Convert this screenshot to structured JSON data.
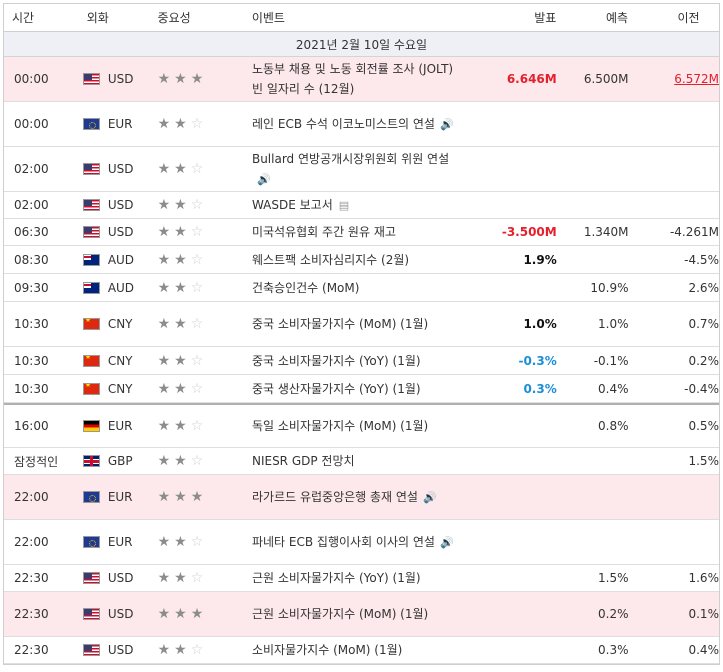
{
  "header": {
    "time": "시간",
    "currency": "외화",
    "importance": "중요성",
    "event": "이벤트",
    "actual": "발표",
    "forecast": "예측",
    "previous": "이전"
  },
  "date_label": "2021년 2월 10일 수요일",
  "rows": [
    {
      "time": "00:00",
      "currency": "USD",
      "flag": "usd-flag-icon",
      "stars": 3,
      "event": "노동부 채용 및 노동 회전률 조사 (JOLT) 빈 일자리 수 (12월)",
      "actual": "6.646M",
      "forecast": "6.500M",
      "previous": "6.572M",
      "highlight": true
    },
    {
      "time": "00:00",
      "currency": "EUR",
      "flag": "eu-flag-icon",
      "stars": 2,
      "event": "레인 ECB 수석 이코노미스트의 연설",
      "speaker": true,
      "actual": "",
      "forecast": "",
      "previous": ""
    },
    {
      "time": "02:00",
      "currency": "USD",
      "flag": "usd-flag-icon",
      "stars": 2,
      "event": "Bullard 연방공개시장위원회 위원 연설",
      "speaker": true,
      "actual": "",
      "forecast": "",
      "previous": ""
    },
    {
      "time": "02:00",
      "currency": "USD",
      "flag": "usd-flag-icon",
      "stars": 2,
      "event": "WASDE 보고서",
      "document": true,
      "actual": "",
      "forecast": "",
      "previous": ""
    },
    {
      "time": "06:30",
      "currency": "USD",
      "flag": "usd-flag-icon",
      "stars": 2,
      "event": "미국석유협회 주간 원유 재고",
      "actual": "-3.500M",
      "forecast": "1.340M",
      "previous": "-4.261M"
    },
    {
      "time": "08:30",
      "currency": "AUD",
      "flag": "aud-flag-icon",
      "stars": 2,
      "event": "웨스트팩 소비자심리지수 (2월)",
      "actual": "1.9%",
      "forecast": "",
      "previous": "-4.5%"
    },
    {
      "time": "09:30",
      "currency": "AUD",
      "flag": "aud-flag-icon",
      "stars": 2,
      "event": "건축승인건수 (MoM)",
      "actual": "",
      "forecast": "10.9%",
      "previous": "2.6%"
    },
    {
      "time": "10:30",
      "currency": "CNY",
      "flag": "cny-flag-icon",
      "stars": 2,
      "event": "중국 소비자물가지수 (MoM) (1월)",
      "actual": "1.0%",
      "forecast": "1.0%",
      "previous": "0.7%"
    },
    {
      "time": "10:30",
      "currency": "CNY",
      "flag": "cny-flag-icon",
      "stars": 2,
      "event": "중국 소비자물가지수 (YoY) (1월)",
      "actual": "-0.3%",
      "forecast": "-0.1%",
      "previous": "0.2%"
    },
    {
      "time": "10:30",
      "currency": "CNY",
      "flag": "cny-flag-icon",
      "stars": 2,
      "event": "중국 생산자물가지수 (YoY) (1월)",
      "actual": "0.3%",
      "forecast": "0.4%",
      "previous": "-0.4%"
    },
    {
      "time": "16:00",
      "currency": "EUR",
      "flag": "de-flag-icon",
      "stars": 2,
      "event": "독일 소비자물가지수 (MoM) (1월)",
      "actual": "",
      "forecast": "0.8%",
      "previous": "0.5%"
    },
    {
      "time": "잠정적인",
      "currency": "GBP",
      "flag": "gbp-flag-icon",
      "stars": 2,
      "event": "NIESR GDP 전망치",
      "actual": "",
      "forecast": "",
      "previous": "1.5%"
    },
    {
      "time": "22:00",
      "currency": "EUR",
      "flag": "eu-flag-icon",
      "stars": 3,
      "event": "라가르드 유럽중앙은행 총재 연설",
      "speaker": true,
      "actual": "",
      "forecast": "",
      "previous": "",
      "highlight": true
    },
    {
      "time": "22:00",
      "currency": "EUR",
      "flag": "eu-flag-icon",
      "stars": 2,
      "event": "파네타 ECB 집행이사회 이사의 연설",
      "speaker": true,
      "actual": "",
      "forecast": "",
      "previous": ""
    },
    {
      "time": "22:30",
      "currency": "USD",
      "flag": "usd-flag-icon",
      "stars": 2,
      "event": "근원 소비자물가지수 (YoY) (1월)",
      "actual": "",
      "forecast": "1.5%",
      "previous": "1.6%"
    },
    {
      "time": "22:30",
      "currency": "USD",
      "flag": "usd-flag-icon",
      "stars": 3,
      "event": "근원 소비자물가지수 (MoM) (1월)",
      "actual": "",
      "forecast": "0.2%",
      "previous": "0.1%",
      "highlight": true
    },
    {
      "time": "22:30",
      "currency": "USD",
      "flag": "usd-flag-icon",
      "stars": 2,
      "event": "소비자물가지수 (MoM) (1월)",
      "actual": "",
      "forecast": "0.3%",
      "previous": "0.4%"
    }
  ],
  "colors": {
    "highlight_row": "#fde8ec",
    "actual_up": "#111111",
    "actual_down_red": "#e4202c",
    "actual_blue": "#1e8fd6",
    "date_bar": "#eef0f5"
  }
}
